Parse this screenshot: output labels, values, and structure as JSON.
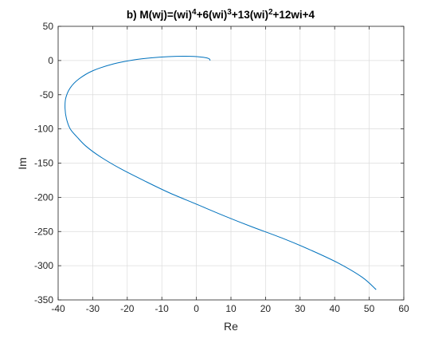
{
  "chart_data": {
    "type": "line",
    "title": {
      "prefix": "b) M(wj)=(wi)",
      "parts": [
        {
          "text": "4",
          "sup": true
        },
        {
          "text": "+6(wi)",
          "sup": false
        },
        {
          "text": "3",
          "sup": true
        },
        {
          "text": "+13(wi)",
          "sup": false
        },
        {
          "text": "2",
          "sup": true
        },
        {
          "text": "+12wi+4",
          "sup": false
        }
      ]
    },
    "xlabel": "Re",
    "ylabel": "Im",
    "xlim": [
      -40,
      60
    ],
    "ylim": [
      -350,
      50
    ],
    "xticks": [
      -40,
      -30,
      -20,
      -10,
      0,
      10,
      20,
      30,
      40,
      50,
      60
    ],
    "yticks": [
      50,
      0,
      -50,
      -100,
      -150,
      -200,
      -250,
      -300,
      -350
    ],
    "grid": true,
    "series": [
      {
        "color": "#0072bd",
        "x": [
          4,
          3.5,
          1,
          -3,
          -8,
          -13,
          -18,
          -24,
          -30,
          -34,
          -36.5,
          -37.8,
          -38,
          -37.6,
          -36.5,
          -34.5,
          -32,
          -28,
          -22,
          -15,
          -8,
          0,
          8,
          16,
          25,
          33,
          41,
          48,
          52
        ],
        "y": [
          0,
          3,
          5.3,
          6.2,
          5.7,
          4,
          1,
          -5,
          -15,
          -27,
          -40,
          -55,
          -70,
          -85,
          -100,
          -112,
          -125,
          -140,
          -158,
          -176,
          -193,
          -210,
          -227,
          -243,
          -260,
          -277,
          -296,
          -317,
          -335
        ]
      }
    ]
  }
}
